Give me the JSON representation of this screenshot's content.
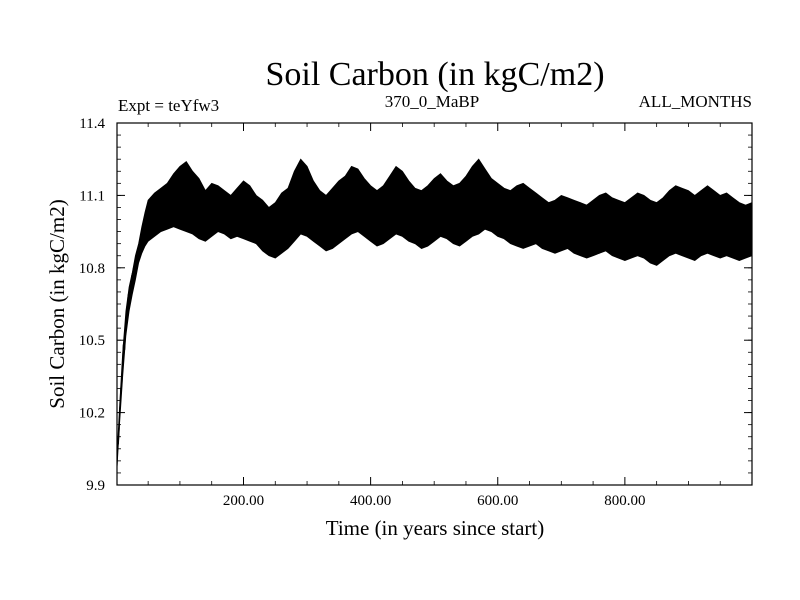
{
  "chart_data": {
    "type": "line",
    "title": "Soil Carbon (in kgC/m2)",
    "experiment": "Expt = teYfw3",
    "period": "370_0_MaBP",
    "months": "ALL_MONTHS",
    "xlabel": "Time (in years since start)",
    "ylabel": "Soil Carbon (in kgC/m2)",
    "xlim": [
      1,
      1000
    ],
    "ylim": [
      9.9,
      11.4
    ],
    "x_ticks": [
      200,
      400,
      600,
      800
    ],
    "x_tick_labels": [
      "200.00",
      "400.00",
      "600.00",
      "800.00"
    ],
    "y_ticks": [
      9.9,
      10.2,
      10.5,
      10.8,
      11.1,
      11.4
    ],
    "y_tick_labels": [
      "9.9",
      "10.2",
      "10.5",
      "10.8",
      "11.1",
      "11.4"
    ],
    "series_color": "#000000",
    "series": [
      {
        "name": "soil carbon",
        "x": [
          1,
          5,
          10,
          15,
          20,
          25,
          30,
          35,
          40,
          45,
          50,
          60,
          70,
          80,
          90,
          100,
          110,
          120,
          130,
          140,
          150,
          160,
          170,
          180,
          190,
          200,
          210,
          220,
          230,
          240,
          250,
          260,
          270,
          280,
          290,
          300,
          310,
          320,
          330,
          340,
          350,
          360,
          370,
          380,
          390,
          400,
          410,
          420,
          430,
          440,
          450,
          460,
          470,
          480,
          490,
          500,
          510,
          520,
          530,
          540,
          550,
          560,
          570,
          580,
          590,
          600,
          610,
          620,
          630,
          640,
          650,
          660,
          670,
          680,
          690,
          700,
          710,
          720,
          730,
          740,
          750,
          760,
          770,
          780,
          790,
          800,
          810,
          820,
          830,
          840,
          850,
          860,
          870,
          880,
          890,
          900,
          910,
          920,
          930,
          940,
          950,
          960,
          970,
          980,
          990,
          1000
        ],
        "min": [
          9.97,
          10.15,
          10.35,
          10.52,
          10.62,
          10.69,
          10.75,
          10.82,
          10.86,
          10.89,
          10.91,
          10.93,
          10.95,
          10.96,
          10.97,
          10.96,
          10.95,
          10.94,
          10.92,
          10.91,
          10.93,
          10.95,
          10.94,
          10.92,
          10.93,
          10.92,
          10.91,
          10.9,
          10.87,
          10.85,
          10.84,
          10.86,
          10.88,
          10.91,
          10.94,
          10.93,
          10.91,
          10.89,
          10.87,
          10.88,
          10.9,
          10.92,
          10.94,
          10.95,
          10.93,
          10.91,
          10.89,
          10.9,
          10.92,
          10.94,
          10.93,
          10.91,
          10.9,
          10.88,
          10.89,
          10.91,
          10.93,
          10.92,
          10.9,
          10.89,
          10.91,
          10.93,
          10.94,
          10.96,
          10.95,
          10.93,
          10.92,
          10.9,
          10.89,
          10.88,
          10.89,
          10.9,
          10.88,
          10.87,
          10.86,
          10.87,
          10.88,
          10.86,
          10.85,
          10.84,
          10.85,
          10.86,
          10.87,
          10.85,
          10.84,
          10.83,
          10.84,
          10.85,
          10.84,
          10.82,
          10.81,
          10.83,
          10.85,
          10.86,
          10.85,
          10.84,
          10.83,
          10.85,
          10.86,
          10.85,
          10.84,
          10.85,
          10.84,
          10.83,
          10.84,
          10.85
        ],
        "max": [
          10.02,
          10.22,
          10.45,
          10.62,
          10.72,
          10.78,
          10.85,
          10.9,
          10.97,
          11.03,
          11.08,
          11.11,
          11.13,
          11.15,
          11.19,
          11.22,
          11.24,
          11.2,
          11.17,
          11.12,
          11.15,
          11.14,
          11.12,
          11.1,
          11.13,
          11.16,
          11.14,
          11.1,
          11.08,
          11.05,
          11.07,
          11.11,
          11.13,
          11.2,
          11.25,
          11.22,
          11.16,
          11.12,
          11.1,
          11.13,
          11.16,
          11.18,
          11.22,
          11.21,
          11.17,
          11.14,
          11.12,
          11.14,
          11.18,
          11.22,
          11.2,
          11.16,
          11.13,
          11.12,
          11.14,
          11.17,
          11.19,
          11.16,
          11.14,
          11.15,
          11.18,
          11.22,
          11.25,
          11.21,
          11.17,
          11.15,
          11.13,
          11.12,
          11.14,
          11.15,
          11.13,
          11.11,
          11.09,
          11.07,
          11.08,
          11.1,
          11.09,
          11.08,
          11.07,
          11.06,
          11.08,
          11.1,
          11.11,
          11.09,
          11.08,
          11.07,
          11.09,
          11.11,
          11.1,
          11.08,
          11.07,
          11.09,
          11.12,
          11.14,
          11.13,
          11.12,
          11.1,
          11.12,
          11.14,
          11.12,
          11.1,
          11.11,
          11.09,
          11.07,
          11.06,
          11.07
        ]
      }
    ]
  }
}
